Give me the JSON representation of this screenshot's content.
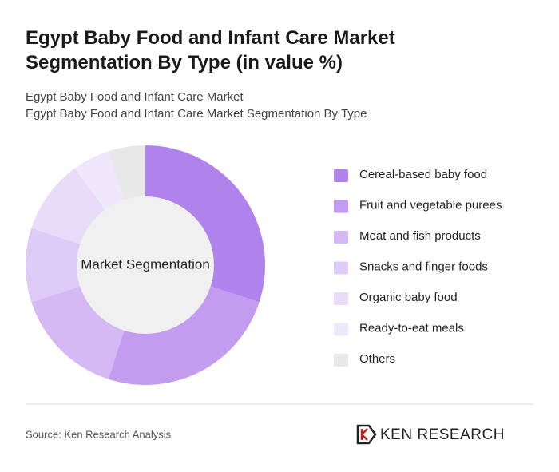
{
  "chart_data": {
    "type": "donut",
    "title": "Egypt Baby Food and Infant Care Market Segmentation By Type (in value %)",
    "subtitle_lines": [
      "Egypt Baby Food and Infant Care Market",
      "Egypt Baby Food and Infant Care Market Segmentation By Type"
    ],
    "center_label": "Market Segmentation",
    "categories": [
      "Cereal-based baby food",
      "Fruit and vegetable purees",
      "Meat and fish products",
      "Snacks and finger foods",
      "Organic baby food",
      "Ready-to-eat meals",
      "Others"
    ],
    "values": [
      30,
      25,
      15,
      10,
      10,
      5,
      5
    ],
    "colors": [
      "#b083ec",
      "#c39cf0",
      "#d5b9f5",
      "#dfcbf7",
      "#e8dcf9",
      "#efe7fb",
      "#e8e8e8"
    ],
    "source": "Source: Ken Research Analysis",
    "brand": "KEN RESEARCH"
  }
}
